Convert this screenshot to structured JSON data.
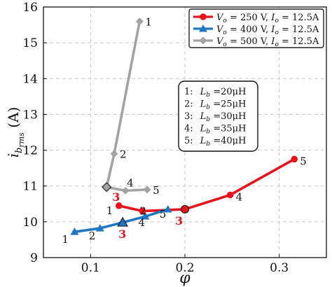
{
  "chart_data": {
    "type": "line",
    "xlabel": "φ",
    "ylabel": "i_b,rms (A)",
    "xlim": [
      0.05,
      0.35
    ],
    "ylim": [
      9,
      16
    ],
    "xticks": [
      0.1,
      0.2,
      0.3
    ],
    "xtick_labels": [
      "0.1",
      "0.2",
      "0.3"
    ],
    "yticks": [
      9,
      10,
      11,
      12,
      13,
      14,
      15,
      16
    ],
    "ytick_labels": [
      "9",
      "10",
      "11",
      "12",
      "13",
      "14",
      "15",
      "16"
    ],
    "grid": true,
    "legend_position": "top-right",
    "series": [
      {
        "name": "V_o = 250 V,  I_o = 12.5A",
        "legend_parts": {
          "v_sym": "V",
          "v_sub": "o",
          "v_val": " = 250 V,  ",
          "i_sym": "I",
          "i_sub": "o",
          "i_val": " = 12.5A"
        },
        "color": "#e8131b",
        "marker": "circle",
        "x": [
          0.13,
          0.155,
          0.2,
          0.248,
          0.316
        ],
        "y": [
          10.45,
          10.3,
          10.35,
          10.75,
          11.75
        ],
        "point_labels": [
          "1",
          "2",
          "3",
          "4",
          "5"
        ]
      },
      {
        "name": "V_o = 400 V,  I_o = 12.5A",
        "legend_parts": {
          "v_sym": "V",
          "v_sub": "o",
          "v_val": " = 400 V,  ",
          "i_sym": "I",
          "i_sub": "o",
          "i_val": " = 12.5A"
        },
        "color": "#1f77c4",
        "marker": "triangle",
        "x": [
          0.083,
          0.11,
          0.134,
          0.158,
          0.182
        ],
        "y": [
          9.72,
          9.82,
          9.98,
          10.15,
          10.35
        ],
        "point_labels": [
          "1",
          "2",
          "3",
          "4",
          "5"
        ]
      },
      {
        "name": "V_o = 500 V,  I_o = 12.5A",
        "legend_parts": {
          "v_sym": "V",
          "v_sub": "o",
          "v_val": " = 500 V,  ",
          "i_sym": "I",
          "i_sub": "o",
          "i_val": " = 12.5A"
        },
        "color": "#a3a3a3",
        "marker": "diamond",
        "x": [
          0.152,
          0.125,
          0.117,
          0.137,
          0.16
        ],
        "y": [
          15.6,
          11.9,
          10.97,
          10.87,
          10.9
        ],
        "point_labels": [
          "1",
          "2",
          "3",
          "4",
          "5"
        ]
      }
    ],
    "highlighted_point": "3",
    "highlight_color": "#e8131b",
    "inductance_box": [
      {
        "index": "1:",
        "sym": "L",
        "sub": "b",
        "val": " =20μH"
      },
      {
        "index": "2:",
        "sym": "L",
        "sub": "b",
        "val": " =25μH"
      },
      {
        "index": "3:",
        "sym": "L",
        "sub": "b",
        "val": " =30μH"
      },
      {
        "index": "4:",
        "sym": "L",
        "sub": "b",
        "val": " =35μH"
      },
      {
        "index": "5:",
        "sym": "L",
        "sub": "b",
        "val": " =40μH"
      }
    ]
  }
}
